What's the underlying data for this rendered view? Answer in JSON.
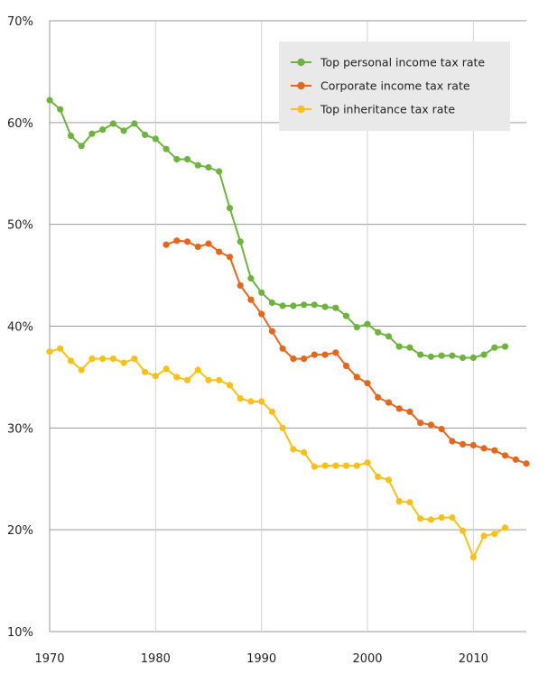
{
  "chart_data": {
    "type": "line",
    "title": "",
    "xlabel": "",
    "ylabel": "",
    "xlim": [
      1970,
      2015
    ],
    "ylim": [
      10,
      70
    ],
    "x_ticks": [
      1970,
      1980,
      1990,
      2000,
      2010
    ],
    "y_ticks": [
      10,
      20,
      30,
      40,
      50,
      60,
      70
    ],
    "x_tick_labels": [
      "1970",
      "1980",
      "1990",
      "2000",
      "2010"
    ],
    "y_tick_labels": [
      "10%",
      "20%",
      "30%",
      "40%",
      "50%",
      "60%",
      "70%"
    ],
    "grid": true,
    "legend_position": "top-right",
    "series": [
      {
        "name": "Top personal income tax rate",
        "color": "#6eb33f",
        "points": [
          [
            1970,
            62.2
          ],
          [
            1971,
            61.3
          ],
          [
            1972,
            58.7
          ],
          [
            1973,
            57.7
          ],
          [
            1974,
            58.9
          ],
          [
            1975,
            59.3
          ],
          [
            1976,
            59.9
          ],
          [
            1977,
            59.2
          ],
          [
            1978,
            59.9
          ],
          [
            1979,
            58.8
          ],
          [
            1980,
            58.4
          ],
          [
            1981,
            57.4
          ],
          [
            1982,
            56.4
          ],
          [
            1983,
            56.4
          ],
          [
            1984,
            55.8
          ],
          [
            1985,
            55.6
          ],
          [
            1986,
            55.2
          ],
          [
            1987,
            51.6
          ],
          [
            1988,
            48.3
          ],
          [
            1989,
            44.7
          ],
          [
            1990,
            43.3
          ],
          [
            1991,
            42.3
          ],
          [
            1992,
            42.0
          ],
          [
            1993,
            42.0
          ],
          [
            1994,
            42.1
          ],
          [
            1995,
            42.1
          ],
          [
            1996,
            41.9
          ],
          [
            1997,
            41.8
          ],
          [
            1998,
            41.0
          ],
          [
            1999,
            39.9
          ],
          [
            2000,
            40.2
          ],
          [
            2001,
            39.4
          ],
          [
            2002,
            39.0
          ],
          [
            2003,
            38.0
          ],
          [
            2004,
            37.9
          ],
          [
            2005,
            37.2
          ],
          [
            2006,
            37.0
          ],
          [
            2007,
            37.1
          ],
          [
            2008,
            37.1
          ],
          [
            2009,
            36.9
          ],
          [
            2010,
            36.9
          ],
          [
            2011,
            37.2
          ],
          [
            2012,
            37.9
          ],
          [
            2013,
            38.0
          ]
        ]
      },
      {
        "name": "Corporate income tax rate",
        "color": "#e3671e",
        "points": [
          [
            1981,
            48.0
          ],
          [
            1982,
            48.4
          ],
          [
            1983,
            48.3
          ],
          [
            1984,
            47.8
          ],
          [
            1985,
            48.1
          ],
          [
            1986,
            47.3
          ],
          [
            1987,
            46.8
          ],
          [
            1988,
            44.0
          ],
          [
            1989,
            42.6
          ],
          [
            1990,
            41.2
          ],
          [
            1991,
            39.5
          ],
          [
            1992,
            37.8
          ],
          [
            1993,
            36.8
          ],
          [
            1994,
            36.8
          ],
          [
            1995,
            37.2
          ],
          [
            1996,
            37.2
          ],
          [
            1997,
            37.4
          ],
          [
            1998,
            36.1
          ],
          [
            1999,
            35.0
          ],
          [
            2000,
            34.4
          ],
          [
            2001,
            33.0
          ],
          [
            2002,
            32.5
          ],
          [
            2003,
            31.9
          ],
          [
            2004,
            31.6
          ],
          [
            2005,
            30.5
          ],
          [
            2006,
            30.3
          ],
          [
            2007,
            29.9
          ],
          [
            2008,
            28.7
          ],
          [
            2009,
            28.4
          ],
          [
            2010,
            28.3
          ],
          [
            2011,
            28.0
          ],
          [
            2012,
            27.8
          ],
          [
            2013,
            27.3
          ],
          [
            2014,
            26.9
          ],
          [
            2015,
            26.5
          ]
        ]
      },
      {
        "name": "Top inheritance tax rate",
        "color": "#f7c11a",
        "points": [
          [
            1970,
            37.5
          ],
          [
            1971,
            37.8
          ],
          [
            1972,
            36.6
          ],
          [
            1973,
            35.7
          ],
          [
            1974,
            36.8
          ],
          [
            1975,
            36.8
          ],
          [
            1976,
            36.8
          ],
          [
            1977,
            36.4
          ],
          [
            1978,
            36.8
          ],
          [
            1979,
            35.5
          ],
          [
            1980,
            35.1
          ],
          [
            1981,
            35.8
          ],
          [
            1982,
            35.0
          ],
          [
            1983,
            34.7
          ],
          [
            1984,
            35.7
          ],
          [
            1985,
            34.7
          ],
          [
            1986,
            34.7
          ],
          [
            1987,
            34.2
          ],
          [
            1988,
            32.9
          ],
          [
            1989,
            32.6
          ],
          [
            1990,
            32.6
          ],
          [
            1991,
            31.6
          ],
          [
            1992,
            30.0
          ],
          [
            1993,
            27.9
          ],
          [
            1994,
            27.6
          ],
          [
            1995,
            26.2
          ],
          [
            1996,
            26.3
          ],
          [
            1997,
            26.3
          ],
          [
            1998,
            26.3
          ],
          [
            1999,
            26.3
          ],
          [
            2000,
            26.6
          ],
          [
            2001,
            25.2
          ],
          [
            2002,
            24.9
          ],
          [
            2003,
            22.8
          ],
          [
            2004,
            22.7
          ],
          [
            2005,
            21.1
          ],
          [
            2006,
            21.0
          ],
          [
            2007,
            21.2
          ],
          [
            2008,
            21.2
          ],
          [
            2009,
            19.9
          ],
          [
            2010,
            17.3
          ],
          [
            2011,
            19.4
          ],
          [
            2012,
            19.6
          ],
          [
            2013,
            20.2
          ]
        ]
      }
    ]
  }
}
